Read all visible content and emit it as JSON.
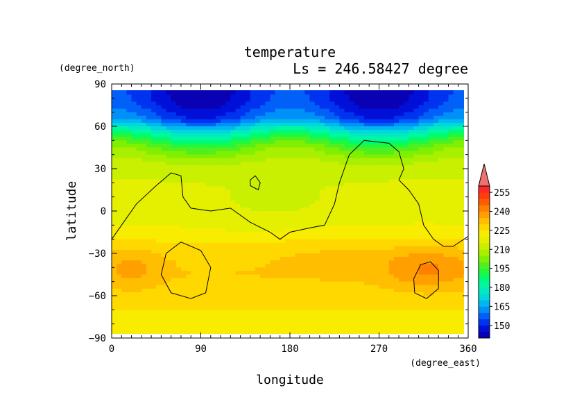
{
  "chart_data": {
    "type": "heatmap",
    "title": "temperature",
    "subtitle": "Ls = 246.58427 degree",
    "xlabel": "longitude",
    "ylabel": "latitude",
    "x_units": "(degree_east)",
    "y_units": "(degree_north)",
    "xlim": [
      0,
      360
    ],
    "ylim": [
      -90,
      90
    ],
    "x_ticks": [
      0,
      90,
      180,
      270,
      360
    ],
    "y_ticks": [
      90,
      60,
      30,
      0,
      -30,
      -60,
      -90
    ],
    "colorbar": {
      "levels": [
        140,
        145,
        150,
        155,
        160,
        165,
        170,
        175,
        180,
        185,
        190,
        195,
        200,
        205,
        210,
        215,
        220,
        225,
        230,
        235,
        240,
        245,
        250,
        255,
        260
      ],
      "tick_labels": [
        150,
        165,
        180,
        195,
        210,
        225,
        240,
        255
      ],
      "colors": [
        "#0a00b4",
        "#0010d8",
        "#0033f0",
        "#0060f8",
        "#0090f8",
        "#00b8f0",
        "#00d8dc",
        "#00ecc0",
        "#00f8a0",
        "#00fa70",
        "#20f840",
        "#50f020",
        "#80f000",
        "#a8f000",
        "#c8f000",
        "#e4f000",
        "#f8ec00",
        "#ffd800",
        "#ffbe00",
        "#ffa000",
        "#ff8000",
        "#ff5c00",
        "#ff3c10",
        "#ff2828"
      ],
      "extend_max_color": "#f07070"
    },
    "profile_lat": [
      85,
      75,
      65,
      55,
      45,
      35,
      25,
      15,
      5,
      -5,
      -15,
      -25,
      -35,
      -45,
      -55,
      -65,
      -75,
      -85
    ],
    "profile_T": [
      148,
      150,
      158,
      182,
      200,
      210,
      214,
      217,
      218,
      219,
      221,
      226,
      229,
      230,
      228,
      226,
      224,
      221
    ],
    "contour_level": 220
  }
}
